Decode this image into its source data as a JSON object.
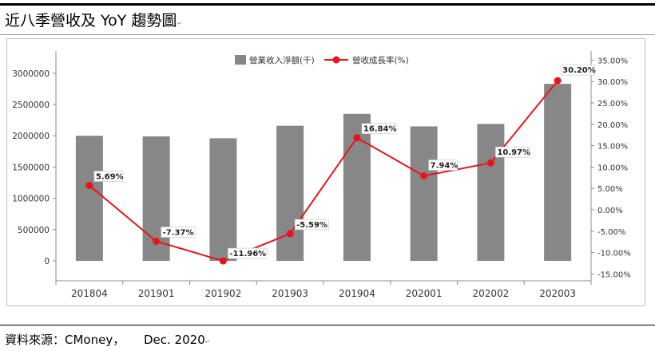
{
  "page": {
    "title": "近八季營收及 YoY 趨勢圖",
    "source": "資料來源：CMoney，",
    "date": "Dec. 2020"
  },
  "colors": {
    "bar": "#878787",
    "line": "#e8141b",
    "grid": "#d9d9d9",
    "axis": "#8c8c8c"
  },
  "chart_data": {
    "type": "bar",
    "categories": [
      "201804",
      "201901",
      "201902",
      "201903",
      "201904",
      "202001",
      "202002",
      "202003"
    ],
    "series": [
      {
        "name": "營業收入淨額(千)",
        "type": "bar",
        "axis": "left",
        "values": [
          2000000,
          1990000,
          1960000,
          2160000,
          2350000,
          2150000,
          2190000,
          2830000
        ]
      },
      {
        "name": "營收成長率(%)",
        "type": "line",
        "axis": "right",
        "values": [
          5.69,
          -7.37,
          -11.96,
          -5.59,
          16.84,
          7.94,
          10.97,
          30.2
        ],
        "labels": [
          "5.69%",
          "-7.37%",
          "-11.96%",
          "-5.59%",
          "16.84%",
          "7.94%",
          "10.97%",
          "30.20%"
        ]
      }
    ],
    "yleft": {
      "ticks": [
        0,
        500000,
        1000000,
        1500000,
        2000000,
        2500000,
        3000000
      ],
      "tick_labels": [
        "0",
        "500000",
        "1000000",
        "1500000",
        "2000000",
        "2500000",
        "3000000"
      ]
    },
    "yright": {
      "ticks": [
        -15,
        -10,
        -5,
        0,
        5,
        10,
        15,
        20,
        25,
        30,
        35
      ],
      "tick_labels": [
        "-15.00%",
        "-10.00%",
        "-5.00%",
        "0.00%",
        "5.00%",
        "10.00%",
        "15.00%",
        "20.00%",
        "25.00%",
        "30.00%",
        "35.00%"
      ]
    },
    "legend_position": "top-center",
    "grid": false
  }
}
